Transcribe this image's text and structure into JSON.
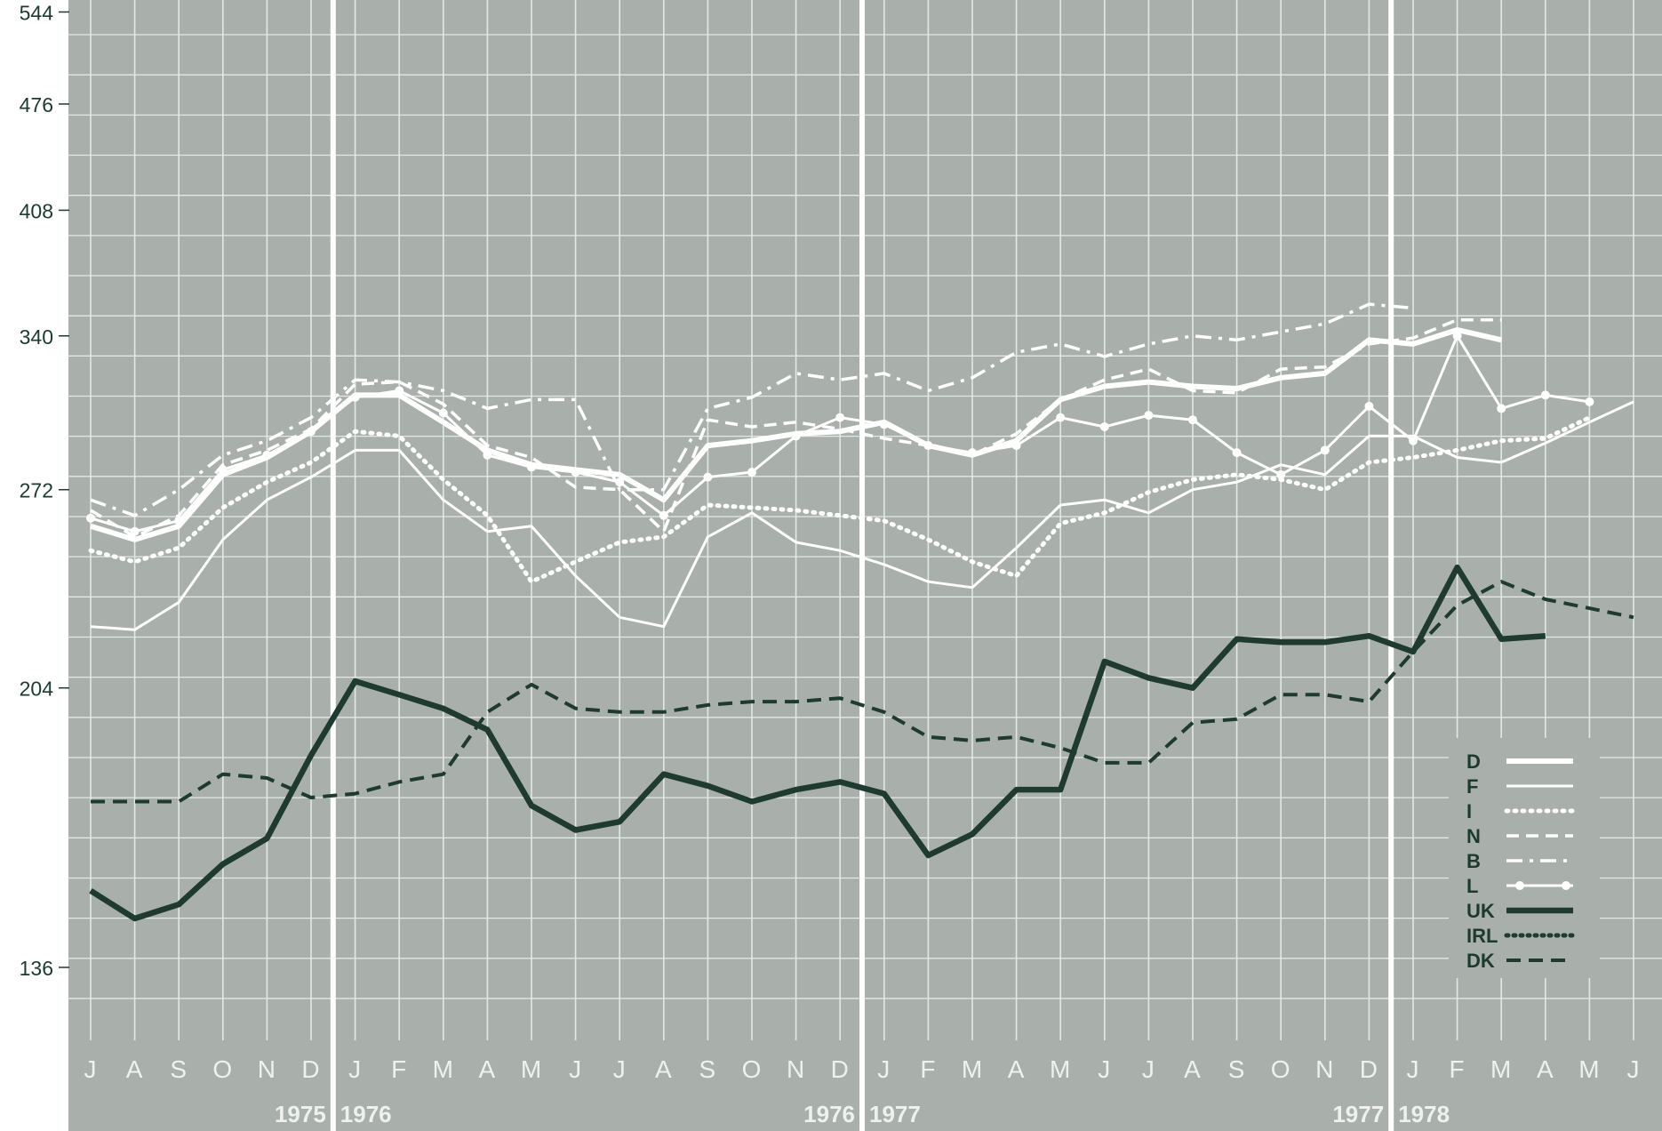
{
  "chart_data": {
    "type": "line",
    "title": "",
    "xlabel": "",
    "ylabel": "",
    "y_scale": "log",
    "ylim": [
      120,
      560
    ],
    "y_ticks": [
      136,
      204,
      272,
      340,
      408,
      476,
      544
    ],
    "y_tick_labels": [
      "136",
      "204",
      "272",
      "340",
      "408",
      "476",
      "544"
    ],
    "x_month_labels": [
      "J",
      "A",
      "S",
      "O",
      "N",
      "D",
      "J",
      "F",
      "M",
      "A",
      "M",
      "J",
      "J",
      "A",
      "S",
      "O",
      "N",
      "D",
      "J",
      "F",
      "M",
      "A",
      "M",
      "J",
      "J",
      "A",
      "S",
      "O",
      "N",
      "D",
      "J",
      "F",
      "M",
      "A",
      "M",
      "J"
    ],
    "year_labels": [
      {
        "text": "1975",
        "after_index": 5,
        "side": "left"
      },
      {
        "text": "1976",
        "after_index": 5,
        "side": "right"
      },
      {
        "text": "1976",
        "after_index": 17,
        "side": "left"
      },
      {
        "text": "1977",
        "after_index": 17,
        "side": "right"
      },
      {
        "text": "1977",
        "after_index": 29,
        "side": "left"
      },
      {
        "text": "1978",
        "after_index": 29,
        "side": "right"
      }
    ],
    "grid": true,
    "legend_position": "bottom-right",
    "colors": {
      "background": "#a9b0ab",
      "grid": "#e4e8e5",
      "light_series": "#ffffff",
      "dark_series": "#1f3a30",
      "axis_text": "#1d3a31",
      "month_text": "#eef1ef"
    },
    "series": [
      {
        "name": "D",
        "style": "thick",
        "color": "#ffffff",
        "values": [
          258,
          253,
          258,
          278,
          285,
          296,
          312,
          312,
          300,
          288,
          282,
          280,
          278,
          268,
          290,
          292,
          295,
          296,
          300,
          290,
          286,
          292,
          310,
          316,
          318,
          316,
          315,
          320,
          322,
          338,
          336,
          343,
          338,
          null,
          null
        ]
      },
      {
        "name": "F",
        "style": "thin",
        "color": "#ffffff",
        "values": [
          223,
          222,
          231,
          253,
          268,
          277,
          288,
          288,
          268,
          256,
          258,
          240,
          226,
          223,
          254,
          263,
          252,
          249,
          244,
          238,
          236,
          250,
          266,
          268,
          263,
          272,
          275,
          282,
          278,
          294,
          294,
          285,
          283,
          291,
          300,
          309
        ]
      },
      {
        "name": "I",
        "style": "dotted",
        "color": "#ffffff",
        "values": [
          249,
          245,
          250,
          265,
          275,
          283,
          296,
          294,
          276,
          262,
          238,
          245,
          252,
          254,
          266,
          265,
          264,
          262,
          260,
          253,
          245,
          240,
          259,
          263,
          271,
          276,
          278,
          276,
          272,
          283,
          285,
          288,
          292,
          293,
          302
        ]
      },
      {
        "name": "N",
        "style": "dashed",
        "color": "#ffffff",
        "values": [
          264,
          254,
          262,
          282,
          288,
          297,
          317,
          318,
          308,
          290,
          285,
          273,
          272,
          256,
          301,
          298,
          300,
          297,
          293,
          290,
          286,
          295,
          310,
          319,
          324,
          314,
          313,
          324,
          325,
          336,
          339,
          348,
          348,
          null
        ]
      },
      {
        "name": "B",
        "style": "dashdot",
        "color": "#ffffff",
        "values": [
          268,
          262,
          272,
          286,
          292,
          302,
          319,
          318,
          314,
          306,
          310,
          310,
          272,
          272,
          306,
          311,
          322,
          319,
          322,
          314,
          320,
          332,
          336,
          330,
          336,
          340,
          338,
          342,
          346,
          356,
          354,
          null,
          null,
          null
        ]
      },
      {
        "name": "L",
        "style": "dots-line",
        "color": "#ffffff",
        "values": [
          261,
          256,
          260,
          280,
          286,
          296,
          311,
          314,
          304,
          286,
          281,
          279,
          275,
          262,
          277,
          279,
          294,
          302,
          299,
          290,
          287,
          290,
          302,
          298,
          303,
          301,
          287,
          278,
          288,
          307,
          292,
          340,
          306,
          312,
          309
        ]
      },
      {
        "name": "UK",
        "style": "thick-dark",
        "color": "#1f3a30",
        "values": [
          152,
          146,
          149,
          158,
          164,
          185,
          206,
          202,
          198,
          192,
          172,
          166,
          168,
          180,
          177,
          173,
          176,
          178,
          175,
          160,
          165,
          176,
          176,
          212,
          207,
          204,
          219,
          218,
          218,
          220,
          215,
          243,
          219,
          220
        ]
      },
      {
        "name": "IRL",
        "style": "dotted-dark",
        "color": "#1f3a30",
        "values": []
      },
      {
        "name": "DK",
        "style": "dashed-dark",
        "color": "#1f3a30",
        "values": [
          173,
          173,
          173,
          180,
          179,
          174,
          175,
          178,
          180,
          197,
          205,
          198,
          197,
          197,
          199,
          200,
          200,
          201,
          197,
          190,
          189,
          190,
          187,
          183,
          183,
          194,
          195,
          202,
          202,
          200,
          215,
          230,
          238,
          232,
          229,
          226
        ]
      }
    ]
  }
}
